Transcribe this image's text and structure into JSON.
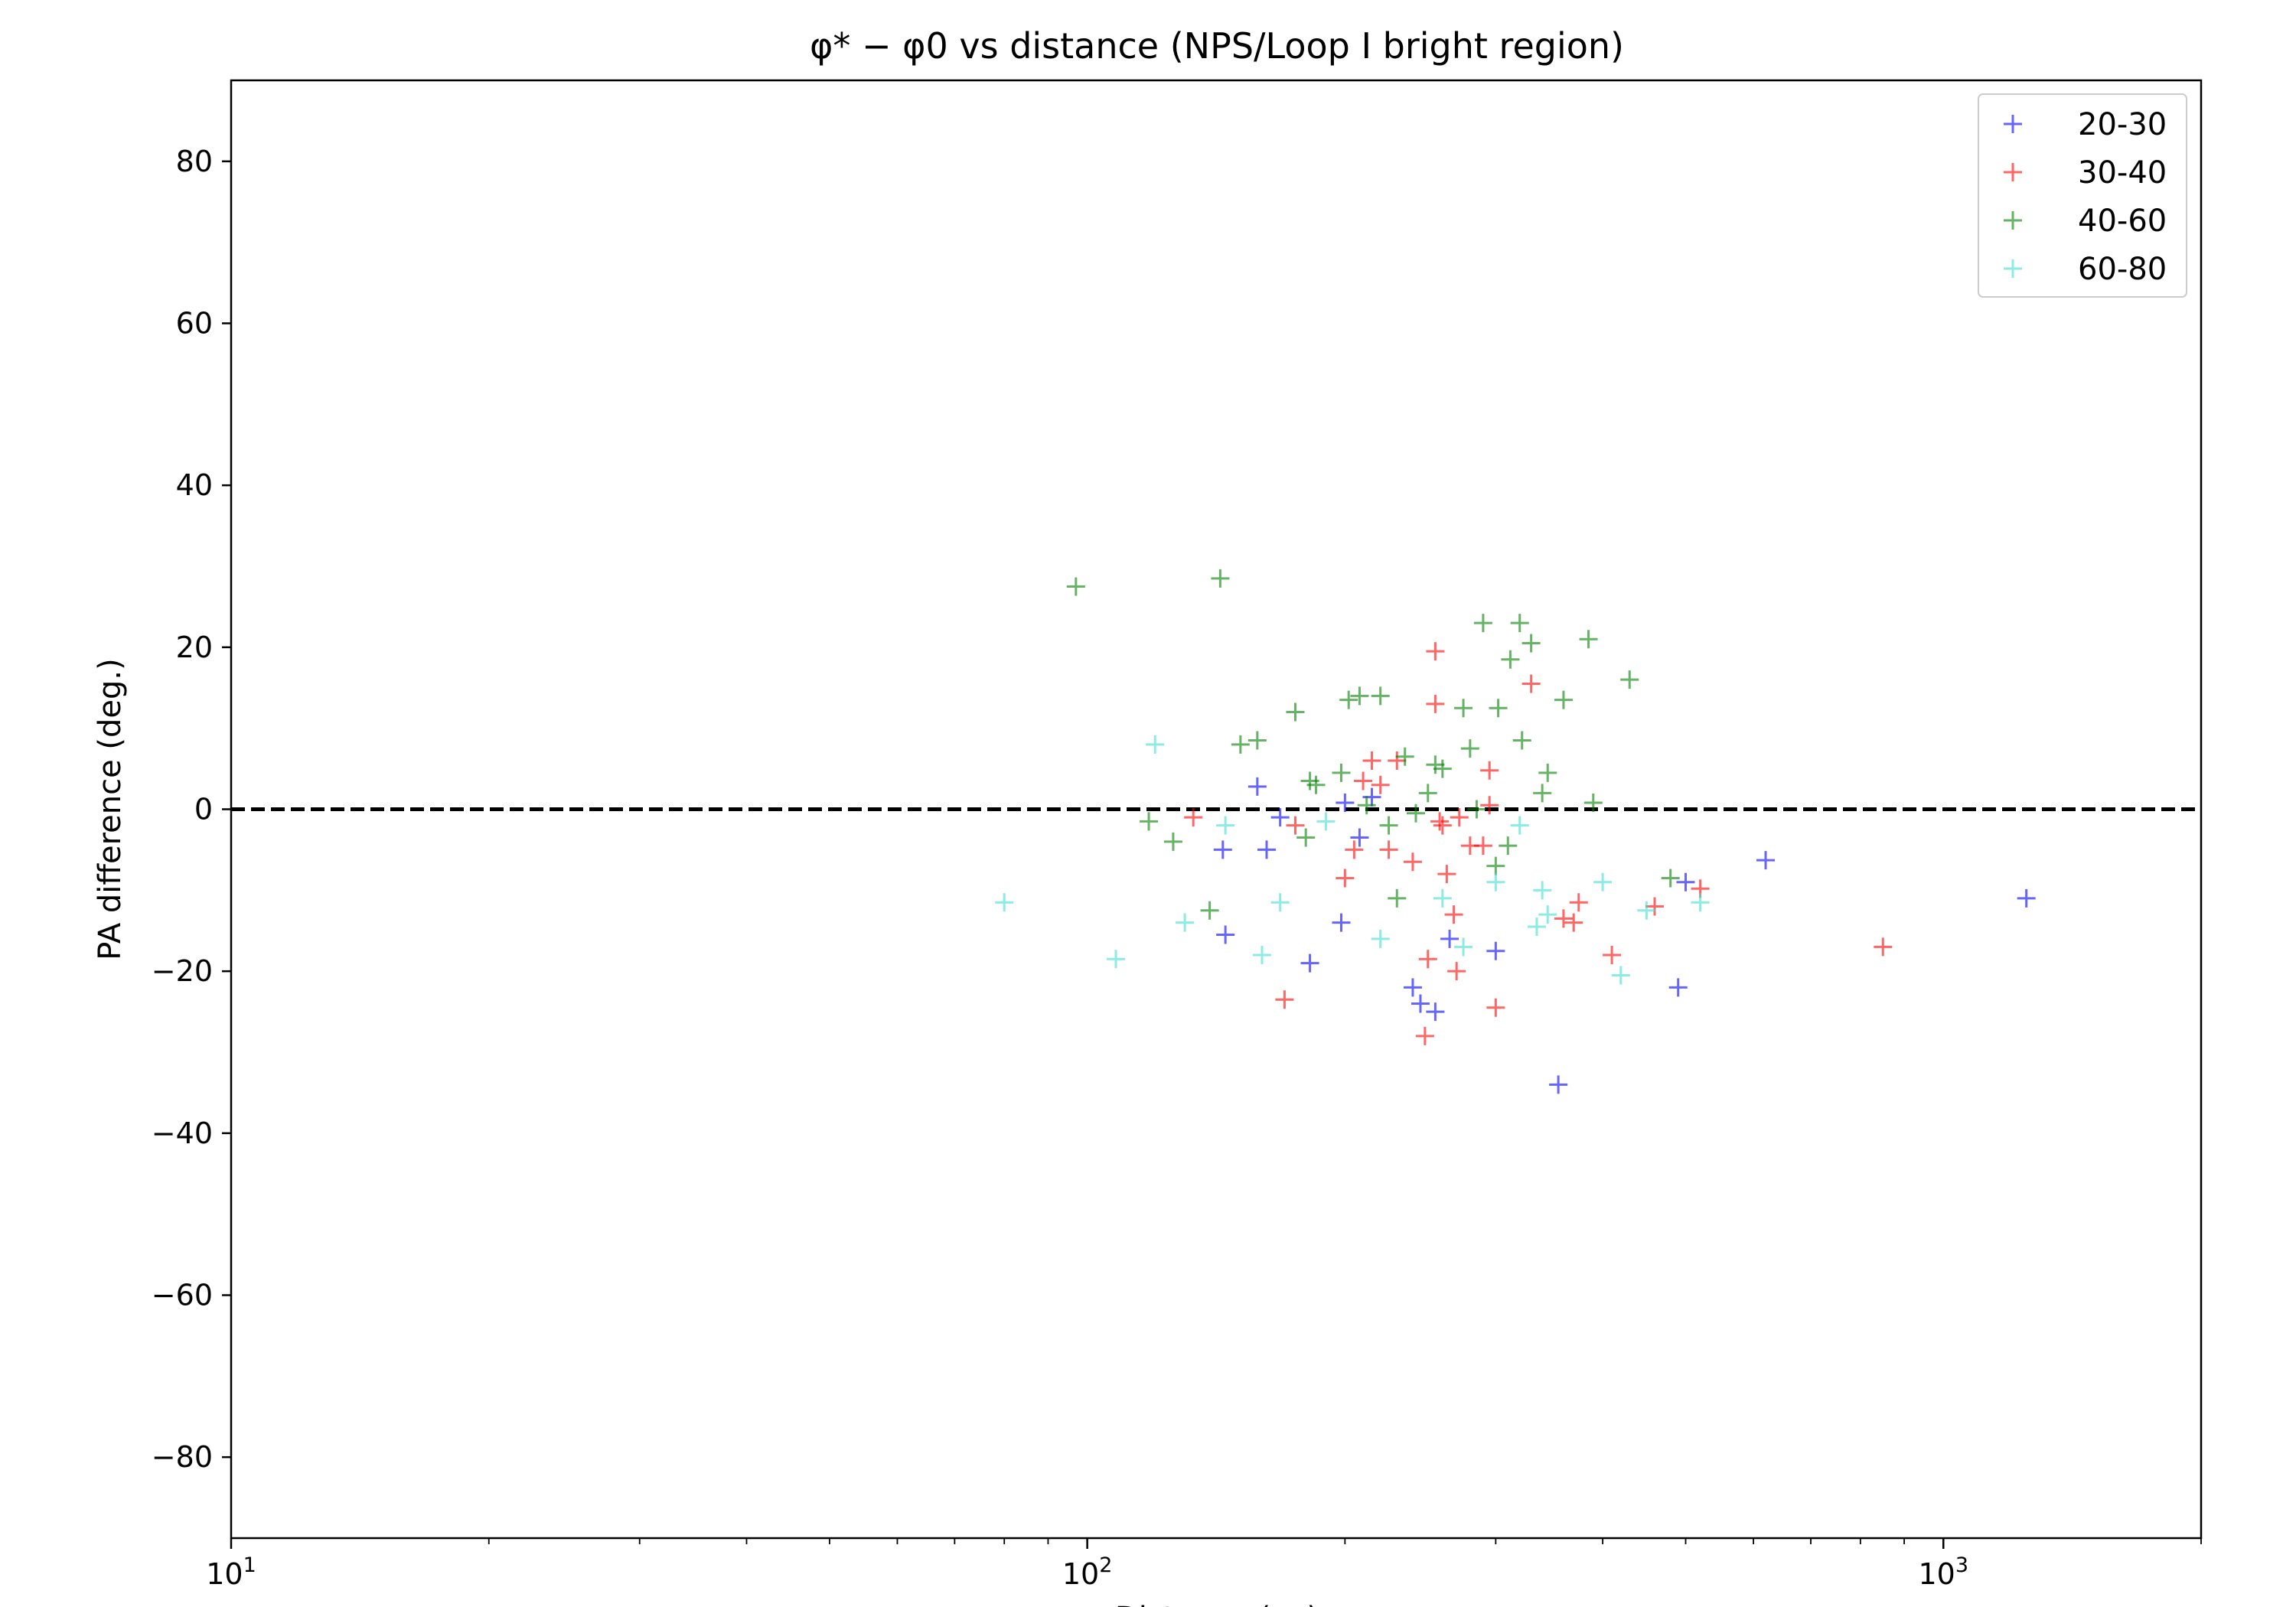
{
  "chart_data": {
    "type": "scatter",
    "title": "φ* − φ0 vs distance (NPS/Loop I bright region)",
    "xlabel": "Distance (pc)",
    "ylabel": "PA difference (deg.)",
    "xscale": "log",
    "xlim": [
      10,
      2000
    ],
    "ylim": [
      -90,
      90
    ],
    "xticks": [
      {
        "value": 10,
        "base": "10",
        "exp": "1"
      },
      {
        "value": 100,
        "base": "10",
        "exp": "2"
      },
      {
        "value": 1000,
        "base": "10",
        "exp": "3"
      }
    ],
    "yticks": [
      -80,
      -60,
      -40,
      -20,
      0,
      20,
      40,
      60,
      80
    ],
    "ytick_labels": [
      "−80",
      "−60",
      "−40",
      "−20",
      "0",
      "20",
      "40",
      "60",
      "80"
    ],
    "reference_line": {
      "y": 0,
      "style": "dashed",
      "color": "#000000"
    },
    "legend_position": "top-right",
    "marker": "+",
    "series": [
      {
        "name": "20-30",
        "color": "#0000ff",
        "points": [
          [
            144,
            -5
          ],
          [
            145,
            -15.5
          ],
          [
            158,
            2.8
          ],
          [
            162,
            -5
          ],
          [
            168,
            -1
          ],
          [
            182,
            -19
          ],
          [
            198,
            -14
          ],
          [
            200,
            0.8
          ],
          [
            208,
            -3.5
          ],
          [
            215,
            1.5
          ],
          [
            240,
            -22
          ],
          [
            245,
            -24
          ],
          [
            255,
            -25
          ],
          [
            265,
            -16
          ],
          [
            300,
            -17.5
          ],
          [
            355,
            -34
          ],
          [
            490,
            -22
          ],
          [
            500,
            -9
          ],
          [
            620,
            -6.3
          ],
          [
            1250,
            -11
          ]
        ]
      },
      {
        "name": "30-40",
        "color": "#ff0000",
        "points": [
          [
            133,
            -1
          ],
          [
            170,
            -23.5
          ],
          [
            175,
            -2
          ],
          [
            200,
            -8.5
          ],
          [
            205,
            -5
          ],
          [
            210,
            3.5
          ],
          [
            215,
            6
          ],
          [
            220,
            3
          ],
          [
            225,
            -5
          ],
          [
            230,
            6
          ],
          [
            240,
            -6.5
          ],
          [
            248,
            -28
          ],
          [
            250,
            -18.5
          ],
          [
            255,
            19.5
          ],
          [
            255,
            13
          ],
          [
            258,
            -1.5
          ],
          [
            260,
            -2
          ],
          [
            263,
            -8
          ],
          [
            268,
            -13
          ],
          [
            270,
            -20
          ],
          [
            272,
            -1
          ],
          [
            280,
            -4.5
          ],
          [
            290,
            -4.5
          ],
          [
            295,
            0.5
          ],
          [
            295,
            4.8
          ],
          [
            300,
            -24.5
          ],
          [
            330,
            15.5
          ],
          [
            360,
            -13.5
          ],
          [
            370,
            -14
          ],
          [
            375,
            -11.5
          ],
          [
            410,
            -18
          ],
          [
            460,
            -12
          ],
          [
            520,
            -9.8
          ],
          [
            850,
            -17
          ]
        ]
      },
      {
        "name": "40-60",
        "color": "#008000",
        "points": [
          [
            97,
            27.5
          ],
          [
            118,
            -1.5
          ],
          [
            126,
            -4
          ],
          [
            139,
            -12.5
          ],
          [
            143,
            28.5
          ],
          [
            151,
            8
          ],
          [
            158,
            8.5
          ],
          [
            175,
            12
          ],
          [
            180,
            -3.5
          ],
          [
            182,
            3.5
          ],
          [
            185,
            3
          ],
          [
            198,
            4.5
          ],
          [
            202,
            13.5
          ],
          [
            208,
            14
          ],
          [
            212,
            0.5
          ],
          [
            220,
            14
          ],
          [
            225,
            -2
          ],
          [
            230,
            -11
          ],
          [
            235,
            6.5
          ],
          [
            242,
            -0.5
          ],
          [
            250,
            2
          ],
          [
            255,
            5.5
          ],
          [
            260,
            5
          ],
          [
            275,
            12.5
          ],
          [
            280,
            7.5
          ],
          [
            285,
            0
          ],
          [
            290,
            23
          ],
          [
            300,
            -7
          ],
          [
            302,
            12.5
          ],
          [
            310,
            -4.5
          ],
          [
            312,
            18.5
          ],
          [
            320,
            23
          ],
          [
            322,
            8.5
          ],
          [
            330,
            20.5
          ],
          [
            340,
            2
          ],
          [
            345,
            4.5
          ],
          [
            360,
            13.5
          ],
          [
            385,
            21
          ],
          [
            390,
            0.8
          ],
          [
            430,
            16
          ],
          [
            480,
            -8.5
          ]
        ]
      },
      {
        "name": "60-80",
        "color": "#40e0d0",
        "points": [
          [
            80,
            -11.5
          ],
          [
            108,
            -18.5
          ],
          [
            120,
            8
          ],
          [
            130,
            -14
          ],
          [
            145,
            -2
          ],
          [
            160,
            -18
          ],
          [
            168,
            -11.5
          ],
          [
            190,
            -1.5
          ],
          [
            220,
            -16
          ],
          [
            260,
            -11
          ],
          [
            275,
            -17
          ],
          [
            300,
            -9
          ],
          [
            320,
            -2
          ],
          [
            335,
            -14.5
          ],
          [
            340,
            -10
          ],
          [
            345,
            -13
          ],
          [
            400,
            -9
          ],
          [
            420,
            -20.5
          ],
          [
            450,
            -12.5
          ],
          [
            520,
            -11.5
          ]
        ]
      }
    ]
  }
}
